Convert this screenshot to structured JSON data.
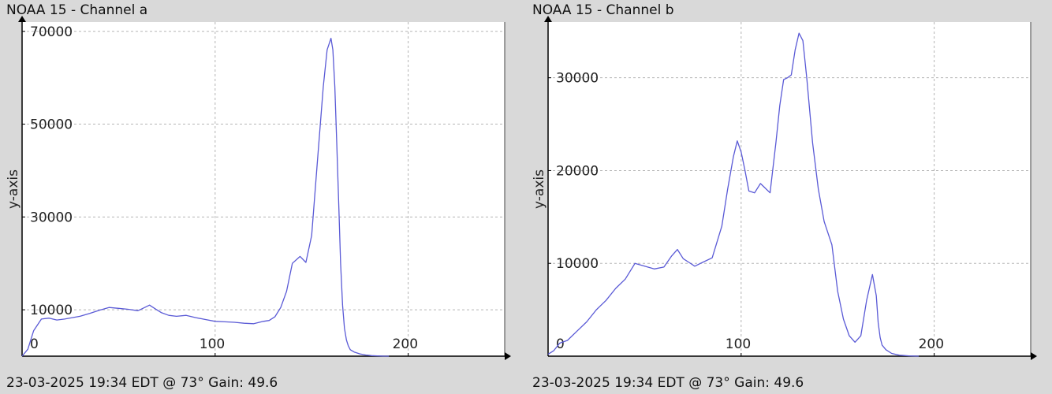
{
  "chart_data": [
    {
      "type": "line",
      "title": "NOAA 15 - Channel a",
      "footer": "23-03-2025 19:34 EDT @ 73° Gain: 49.6",
      "xlabel": "",
      "ylabel": "y-axis",
      "xlim": [
        0,
        250
      ],
      "ylim": [
        0,
        72000
      ],
      "xticks": [
        0,
        100,
        200
      ],
      "yticks": [
        10000,
        30000,
        50000,
        70000
      ],
      "grid": true,
      "line_color": "#5a5ad6",
      "x": [
        0,
        3,
        6,
        10,
        14,
        18,
        22,
        26,
        30,
        35,
        40,
        45,
        50,
        55,
        60,
        63,
        66,
        69,
        72,
        76,
        80,
        85,
        90,
        95,
        100,
        105,
        110,
        115,
        120,
        125,
        128,
        131,
        134,
        137,
        140,
        144,
        147,
        150,
        153,
        156,
        158,
        160,
        161,
        162,
        163,
        164,
        165,
        166,
        167,
        168,
        169,
        170,
        172,
        175,
        178,
        181,
        184,
        187,
        190
      ],
      "y": [
        0,
        1500,
        5500,
        8000,
        8200,
        7800,
        8000,
        8300,
        8600,
        9200,
        9900,
        10500,
        10300,
        10100,
        9800,
        10400,
        11000,
        10200,
        9400,
        8800,
        8600,
        8800,
        8300,
        7900,
        7500,
        7400,
        7300,
        7100,
        7000,
        7500,
        7700,
        8500,
        10500,
        14000,
        20000,
        21500,
        20200,
        26000,
        42000,
        58000,
        66000,
        68500,
        66000,
        58000,
        46000,
        33000,
        20000,
        11000,
        6000,
        3500,
        2200,
        1400,
        900,
        500,
        250,
        120,
        60,
        20,
        0
      ]
    },
    {
      "type": "line",
      "title": "NOAA 15 - Channel b",
      "footer": "23-03-2025 19:34 EDT @ 73° Gain: 49.6",
      "xlabel": "",
      "ylabel": "y-axis",
      "xlim": [
        0,
        250
      ],
      "ylim": [
        0,
        36000
      ],
      "xticks": [
        0,
        100,
        200
      ],
      "yticks": [
        10000,
        20000,
        30000
      ],
      "grid": true,
      "line_color": "#5a5ad6",
      "x": [
        0,
        3,
        6,
        10,
        15,
        20,
        25,
        30,
        35,
        40,
        45,
        50,
        55,
        60,
        64,
        67,
        70,
        73,
        76,
        80,
        85,
        90,
        93,
        96,
        98,
        100,
        102,
        104,
        107,
        110,
        112,
        115,
        118,
        120,
        122,
        124,
        126,
        128,
        130,
        132,
        134,
        137,
        140,
        143,
        147,
        150,
        153,
        156,
        159,
        162,
        165,
        168,
        170,
        171,
        172,
        173,
        175,
        178,
        182,
        187,
        192
      ],
      "y": [
        200,
        600,
        1400,
        1700,
        2700,
        3700,
        5000,
        6000,
        7300,
        8300,
        10000,
        9700,
        9400,
        9600,
        10800,
        11500,
        10500,
        10100,
        9700,
        10100,
        10600,
        14000,
        18000,
        21500,
        23200,
        22000,
        20000,
        17800,
        17600,
        18600,
        18200,
        17600,
        23000,
        27000,
        29800,
        30000,
        30300,
        33000,
        34800,
        34000,
        30000,
        23000,
        18000,
        14500,
        12000,
        7000,
        4000,
        2200,
        1500,
        2200,
        6000,
        8800,
        6500,
        3600,
        2000,
        1200,
        700,
        300,
        100,
        30,
        0
      ]
    }
  ]
}
